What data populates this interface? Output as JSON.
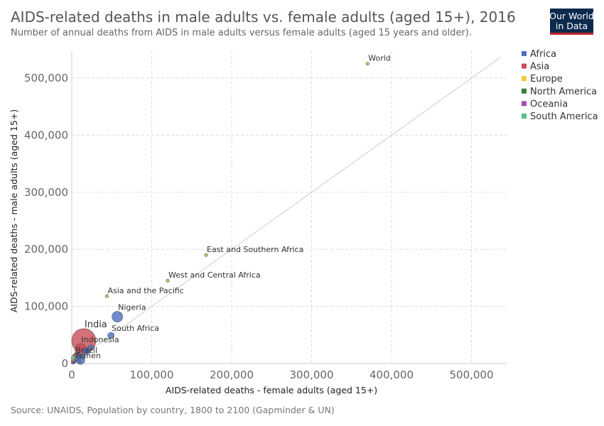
{
  "header": {
    "title": "AIDS-related deaths in male adults vs. female adults (aged 15+), 2016",
    "subtitle": "Number of annual deaths from AIDS in male adults versus female adults (aged 15 years and older)."
  },
  "logo": {
    "line1": "Our World",
    "line2": "in Data"
  },
  "footer": {
    "source": "Source: UNAIDS, Population by country, 1800 to 2100 (Gapminder & UN)"
  },
  "chart_data": {
    "type": "scatter",
    "title": "AIDS-related deaths in male adults vs. female adults (aged 15+), 2016",
    "xlabel": "AIDS-related deaths - female adults (aged 15+)",
    "ylabel": "AIDS-related deaths - male adults (aged 15+)",
    "xlim": [
      0,
      550000
    ],
    "ylim": [
      0,
      550000
    ],
    "x_ticks": [
      {
        "value": 0,
        "label": "0"
      },
      {
        "value": 100000,
        "label": "100,000"
      },
      {
        "value": 200000,
        "label": "200,000"
      },
      {
        "value": 300000,
        "label": "300,000"
      },
      {
        "value": 400000,
        "label": "400,000"
      },
      {
        "value": 500000,
        "label": "500,000"
      }
    ],
    "y_ticks": [
      {
        "value": 0,
        "label": "0"
      },
      {
        "value": 100000,
        "label": "100,000"
      },
      {
        "value": 200000,
        "label": "200,000"
      },
      {
        "value": 300000,
        "label": "300,000"
      },
      {
        "value": 400000,
        "label": "400,000"
      },
      {
        "value": 500000,
        "label": "500,000"
      }
    ],
    "grid": true,
    "reference_line": "y = x",
    "legend_position": "right",
    "legend": [
      {
        "name": "Africa",
        "color": "#4c6fbf"
      },
      {
        "name": "Asia",
        "color": "#cc4c56"
      },
      {
        "name": "Europe",
        "color": "#f5c83a"
      },
      {
        "name": "North America",
        "color": "#3a7d3e"
      },
      {
        "name": "Oceania",
        "color": "#a84cb5"
      },
      {
        "name": "South America",
        "color": "#55bf85"
      }
    ],
    "points": [
      {
        "label": "World",
        "x": 370000,
        "y": 525000,
        "color": "#c2b24a",
        "size": 2.2,
        "show_label": true
      },
      {
        "label": "East and Southern Africa",
        "x": 168000,
        "y": 190000,
        "color": "#c2b24a",
        "size": 2.2,
        "show_label": true
      },
      {
        "label": "West and Central Africa",
        "x": 120000,
        "y": 145000,
        "color": "#c2b24a",
        "size": 2.2,
        "show_label": true
      },
      {
        "label": "Asia and the Pacific",
        "x": 44000,
        "y": 118000,
        "color": "#c2b24a",
        "size": 2.2,
        "show_label": true
      },
      {
        "label": "India",
        "x": 15000,
        "y": 40000,
        "color": "#cc4c56",
        "size": 17,
        "show_label": true,
        "label_size": 13
      },
      {
        "label": "Nigeria",
        "x": 57000,
        "y": 82000,
        "color": "#4c6fbf",
        "size": 7.5,
        "show_label": true
      },
      {
        "label": "South Africa",
        "x": 49000,
        "y": 49000,
        "color": "#4c6fbf",
        "size": 4.5,
        "show_label": true
      },
      {
        "label": "Indonesia",
        "x": 11000,
        "y": 25000,
        "color": "#cc4c56",
        "size": 8,
        "show_label": true
      },
      {
        "label": "Brazil",
        "x": 4000,
        "y": 10000,
        "color": "#55bf85",
        "size": 5,
        "show_label": true
      },
      {
        "label": "Yemen",
        "x": 3000,
        "y": 4000,
        "color": "#cc4c56",
        "size": 2.5,
        "show_label": true
      },
      {
        "label": "",
        "x": 11000,
        "y": 6000,
        "color": "#4c6fbf",
        "size": 6,
        "show_label": false
      },
      {
        "label": "",
        "x": 18000,
        "y": 22000,
        "color": "#4c6fbf",
        "size": 5,
        "show_label": false
      },
      {
        "label": "",
        "x": 24000,
        "y": 28000,
        "color": "#4c6fbf",
        "size": 4,
        "show_label": false
      },
      {
        "label": "",
        "x": 8000,
        "y": 14000,
        "color": "#4c6fbf",
        "size": 4.5,
        "show_label": false
      },
      {
        "label": "",
        "x": 14000,
        "y": 12000,
        "color": "#4c6fbf",
        "size": 3.5,
        "show_label": false
      },
      {
        "label": "",
        "x": 5000,
        "y": 15000,
        "color": "#cc4c56",
        "size": 3,
        "show_label": false
      },
      {
        "label": "",
        "x": 2500,
        "y": 3500,
        "color": "#3a7d3e",
        "size": 3,
        "show_label": false
      },
      {
        "label": "",
        "x": 1500,
        "y": 5000,
        "color": "#f5c83a",
        "size": 2.5,
        "show_label": false
      },
      {
        "label": "",
        "x": 2000,
        "y": 2000,
        "color": "#4c6fbf",
        "size": 2.5,
        "show_label": false
      },
      {
        "label": "",
        "x": 1000,
        "y": 1500,
        "color": "#a84cb5",
        "size": 2,
        "show_label": false
      },
      {
        "label": "",
        "x": 6000,
        "y": 7000,
        "color": "#4c6fbf",
        "size": 3,
        "show_label": false
      },
      {
        "label": "",
        "x": 9000,
        "y": 4000,
        "color": "#4c6fbf",
        "size": 3,
        "show_label": false
      }
    ]
  }
}
